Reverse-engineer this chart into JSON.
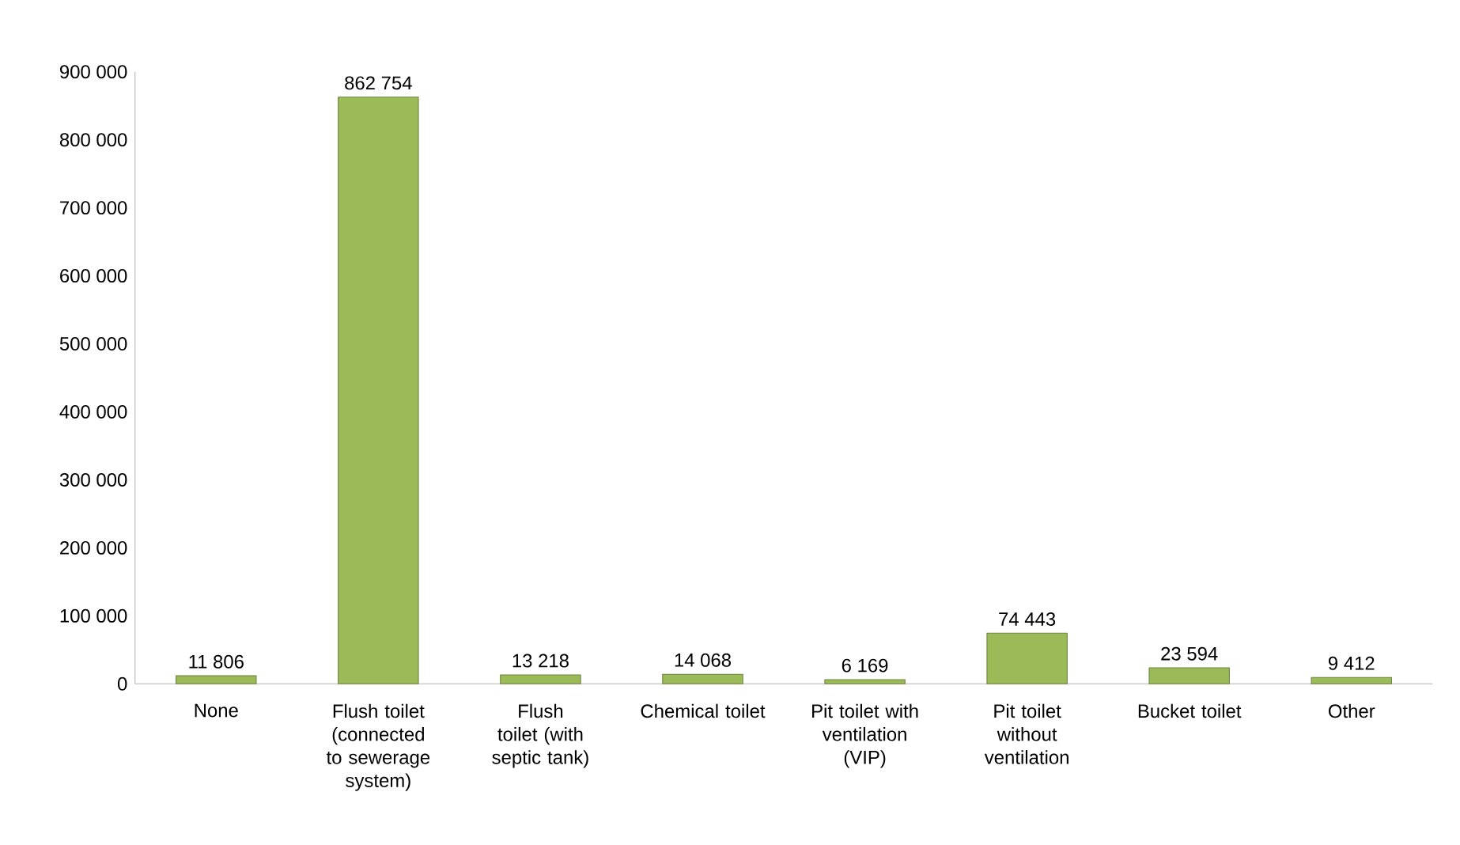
{
  "chart_data": {
    "type": "bar",
    "categories": [
      "None",
      "Flush toilet (connected to sewerage system)",
      "Flush toilet (with septic tank)",
      "Chemical toilet",
      "Pit toilet with ventilation (VIP)",
      "Pit toilet without ventilation",
      "Bucket toilet",
      "Other"
    ],
    "values": [
      11806,
      862754,
      13218,
      14068,
      6169,
      74443,
      23594,
      9412
    ],
    "value_labels": [
      "11 806",
      "862 754",
      "13 218",
      "14 068",
      "6 169",
      "74 443",
      "23 594",
      "9 412"
    ],
    "color": "#9bbb59",
    "ylim": [
      0,
      900000
    ],
    "yticks": [
      {
        "value": 0,
        "label": "0"
      },
      {
        "value": 100000,
        "label": "100 000"
      },
      {
        "value": 200000,
        "label": "200 000"
      },
      {
        "value": 300000,
        "label": "300 000"
      },
      {
        "value": 400000,
        "label": "400 000"
      },
      {
        "value": 500000,
        "label": "500 000"
      },
      {
        "value": 600000,
        "label": "600 000"
      },
      {
        "value": 700000,
        "label": "700 000"
      },
      {
        "value": 800000,
        "label": "800 000"
      },
      {
        "value": 900000,
        "label": "900 000"
      }
    ],
    "grid": false
  }
}
